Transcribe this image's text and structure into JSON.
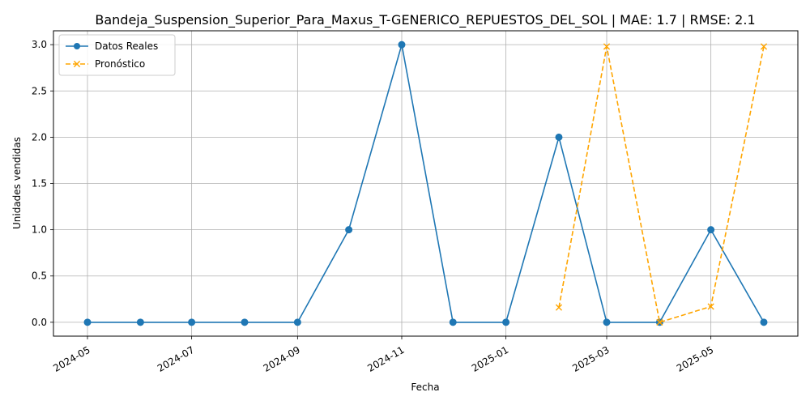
{
  "chart_data": {
    "type": "line",
    "title": "Bandeja_Suspension_Superior_Para_Maxus_T-GENERICO_REPUESTOS_DEL_SOL | MAE: 1.7 | RMSE: 2.1",
    "xlabel": "Fecha",
    "ylabel": "Unidades vendidas",
    "ylim": [
      -0.15,
      3.15
    ],
    "x_ticks": [
      "2024-05",
      "2024-07",
      "2024-09",
      "2024-11",
      "2025-01",
      "2025-03",
      "2025-05"
    ],
    "y_ticks": [
      "0.0",
      "0.5",
      "1.0",
      "1.5",
      "2.0",
      "2.5",
      "3.0"
    ],
    "grid": true,
    "legend_position": "top-left",
    "series": [
      {
        "name": "Datos Reales",
        "color": "#1f77b4",
        "line_style": "solid",
        "marker": "circle",
        "x": [
          "2024-05-01",
          "2024-06-01",
          "2024-07-01",
          "2024-08-01",
          "2024-09-01",
          "2024-10-01",
          "2024-11-01",
          "2024-12-01",
          "2025-01-01",
          "2025-02-01",
          "2025-03-01",
          "2025-04-01",
          "2025-05-01",
          "2025-06-01"
        ],
        "y": [
          0,
          0,
          0,
          0,
          0,
          1,
          3,
          0,
          0,
          2,
          0,
          0,
          1,
          0
        ]
      },
      {
        "name": "Pronóstico",
        "color": "#ffa500",
        "line_style": "dashed",
        "marker": "x",
        "x": [
          "2025-02-01",
          "2025-03-01",
          "2025-04-01",
          "2025-05-01",
          "2025-06-01"
        ],
        "y": [
          0.16,
          2.98,
          0.0,
          0.17,
          2.98
        ]
      }
    ]
  }
}
